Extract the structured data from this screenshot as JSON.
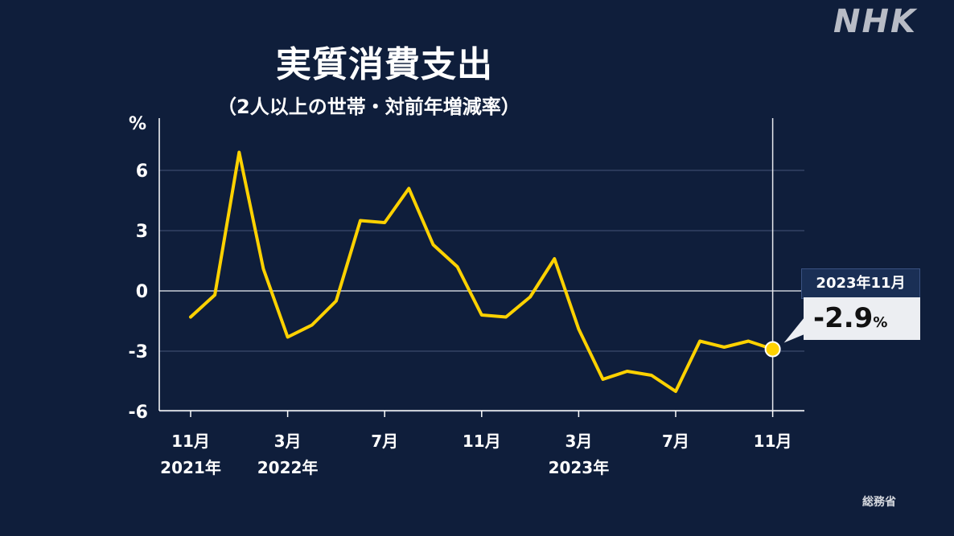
{
  "logo": "NHK",
  "title": "実質消費支出",
  "subtitle": "（2人以上の世帯・対前年増減率）",
  "source": "総務省",
  "callout": {
    "date": "2023年11月",
    "value": "-2.9",
    "unit": "%"
  },
  "colors": {
    "background": "#0f1e3b",
    "line": "#ffd200",
    "grid": "#3a4a6b",
    "axis": "#ffffff"
  },
  "chart_data": {
    "type": "line",
    "ylabel": "%",
    "ylim": [
      -6,
      7.5
    ],
    "yticks": [
      6,
      3,
      0,
      -3,
      -6
    ],
    "grid": true,
    "x": [
      "2021-11",
      "2021-12",
      "2022-01",
      "2022-02",
      "2022-03",
      "2022-04",
      "2022-05",
      "2022-06",
      "2022-07",
      "2022-08",
      "2022-09",
      "2022-10",
      "2022-11",
      "2022-12",
      "2023-01",
      "2023-02",
      "2023-03",
      "2023-04",
      "2023-05",
      "2023-06",
      "2023-07",
      "2023-08",
      "2023-09",
      "2023-10",
      "2023-11"
    ],
    "series": [
      {
        "values": [
          -1.3,
          -0.2,
          6.9,
          1.1,
          -2.3,
          -1.7,
          -0.5,
          3.5,
          3.4,
          5.1,
          2.3,
          1.2,
          -1.2,
          -1.3,
          -0.3,
          1.6,
          -1.9,
          -4.4,
          -4.0,
          -4.2,
          -5.0,
          -2.5,
          -2.8,
          -2.5,
          -2.9
        ]
      }
    ],
    "xticks": [
      {
        "index": 0,
        "label": "11月",
        "sub": "2021年"
      },
      {
        "index": 4,
        "label": "3月",
        "sub": "2022年"
      },
      {
        "index": 8,
        "label": "7月",
        "sub": ""
      },
      {
        "index": 12,
        "label": "11月",
        "sub": ""
      },
      {
        "index": 16,
        "label": "3月",
        "sub": "2023年"
      },
      {
        "index": 20,
        "label": "7月",
        "sub": ""
      },
      {
        "index": 24,
        "label": "11月",
        "sub": ""
      }
    ]
  }
}
